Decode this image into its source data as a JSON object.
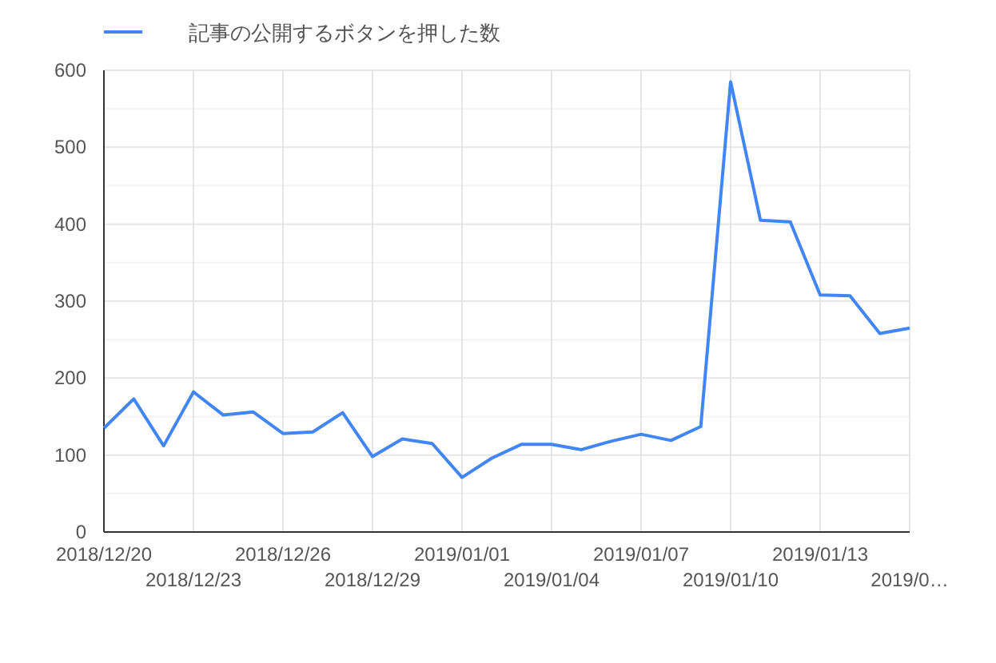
{
  "chart_data": {
    "type": "line",
    "categories": [
      "2018/12/20",
      null,
      null,
      "2018/12/23",
      null,
      null,
      "2018/12/26",
      null,
      null,
      "2018/12/29",
      null,
      null,
      "2019/01/01",
      null,
      null,
      "2019/01/04",
      null,
      null,
      "2019/01/07",
      null,
      null,
      "2019/01/10",
      null,
      null,
      "2019/01/13",
      null,
      null,
      "2019/0…"
    ],
    "series": [
      {
        "name": "記事の公開するボタンを押した数",
        "color": "#4285f4",
        "values": [
          135,
          173,
          112,
          182,
          152,
          156,
          128,
          130,
          155,
          98,
          121,
          115,
          71,
          96,
          114,
          114,
          107,
          118,
          127,
          119,
          137,
          585,
          405,
          403,
          308,
          307,
          258,
          265
        ]
      }
    ],
    "ylim": [
      0,
      600
    ],
    "yticks": [
      0,
      100,
      200,
      300,
      400,
      500,
      600
    ],
    "grid": true,
    "legend": "top left"
  }
}
